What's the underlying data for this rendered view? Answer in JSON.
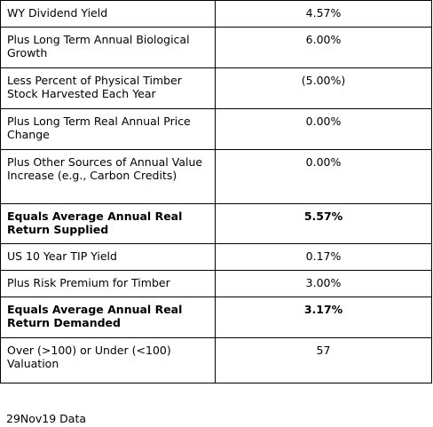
{
  "table": {
    "rows": [
      [
        "WY Dividend Yield",
        "4.57%"
      ],
      [
        "Plus Long Term Annual Biological Growth",
        "6.00%"
      ],
      [
        "Less Percent of Physical Timber Stock Harvested Each Year",
        "(5.00%)"
      ],
      [
        "Plus Long Term Real Annual Price Change",
        "0.00%"
      ],
      [
        "Plus Other Sources of Annual Value Increase (e.g., Carbon Credits)",
        "0.00%"
      ],
      [
        "Equals Average Annual Real Return Supplied",
        "5.57%"
      ],
      [
        "US 10 Year TIP Yield",
        "0.17%"
      ],
      [
        "Plus Risk Premium for Timber",
        "3.00%"
      ],
      [
        "Equals Average Annual Real Return Demanded",
        "3.17%"
      ],
      [
        "Over (>100) or Under (<100) Valuation",
        "57"
      ]
    ]
  },
  "footer": {
    "note": "29Nov19 Data"
  }
}
